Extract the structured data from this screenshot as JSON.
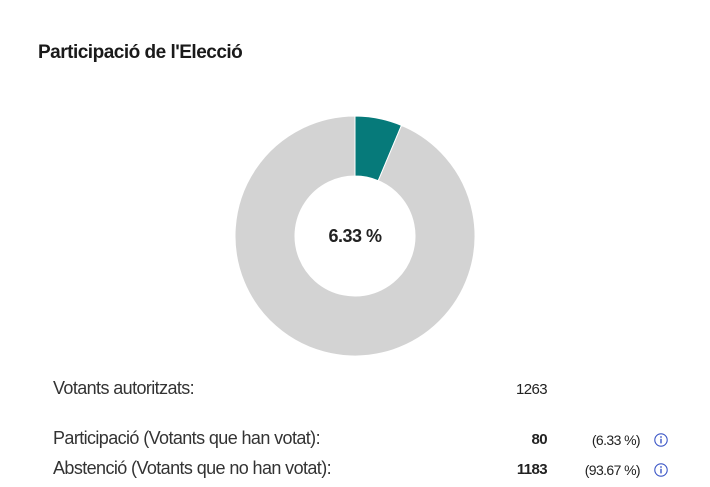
{
  "title": "Participació de l'Elecció",
  "chart_data": {
    "type": "pie",
    "categories": [
      "Participació",
      "Abstenció"
    ],
    "values": [
      6.33,
      93.67
    ],
    "colors": [
      "#067a7a",
      "#d3d3d3"
    ],
    "center_label": "6.33 %"
  },
  "stats": {
    "authorized": {
      "label": "Votants autoritzats:",
      "value": "1263"
    },
    "participation": {
      "label": "Participació (Votants que han votat):",
      "value": "80",
      "percent": "(6.33 %)",
      "info_icon": "info-icon"
    },
    "abstention": {
      "label": "Abstenció (Votants que no han votat):",
      "value": "1183",
      "percent": "(93.67 %)",
      "info_icon": "info-icon"
    }
  },
  "colors": {
    "accent": "#067a7a",
    "remainder": "#d3d3d3",
    "info": "#3a55c6"
  }
}
